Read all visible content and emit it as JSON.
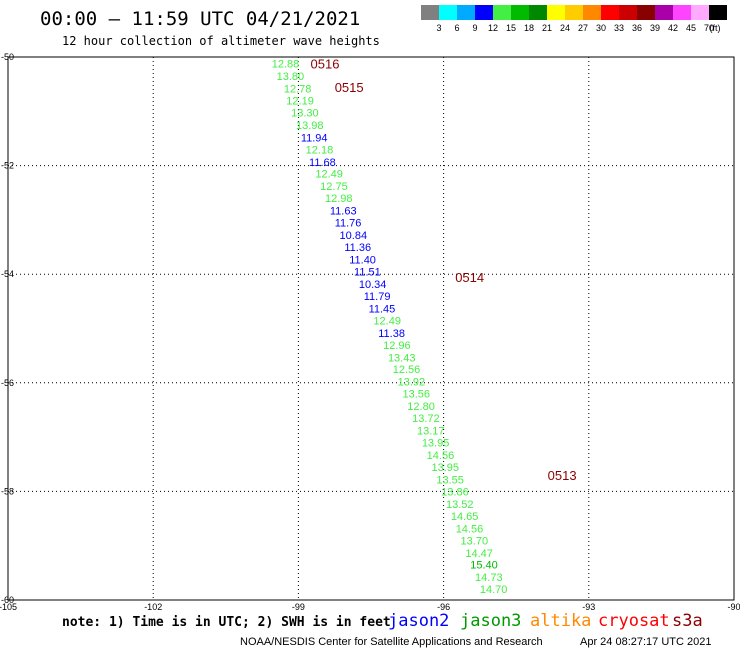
{
  "header": {
    "title": "00:00 – 11:59 UTC 04/21/2021",
    "subtitle": "12 hour collection of altimeter wave heights"
  },
  "legend": {
    "unit": "(ft)",
    "items": [
      {
        "label": "3",
        "color": "#808080"
      },
      {
        "label": "6",
        "color": "#00ffff"
      },
      {
        "label": "9",
        "color": "#00aaff"
      },
      {
        "label": "12",
        "color": "#0000ff"
      },
      {
        "label": "15",
        "color": "#44ee44"
      },
      {
        "label": "18",
        "color": "#00bb00"
      },
      {
        "label": "21",
        "color": "#008800"
      },
      {
        "label": "24",
        "color": "#ffff00"
      },
      {
        "label": "27",
        "color": "#ffcc00"
      },
      {
        "label": "30",
        "color": "#ff8800"
      },
      {
        "label": "33",
        "color": "#ff0000"
      },
      {
        "label": "36",
        "color": "#cc0000"
      },
      {
        "label": "39",
        "color": "#880000"
      },
      {
        "label": "42",
        "color": "#aa00aa"
      },
      {
        "label": "45",
        "color": "#ff44ff"
      },
      {
        "label": "70",
        "color": "#ffaaff"
      },
      {
        "label": "",
        "color": "#000000"
      }
    ]
  },
  "footer": {
    "note": "note: 1) Time is in UTC; 2) SWH is in feet",
    "missions": [
      {
        "name": "jason2",
        "color": "#0000ff"
      },
      {
        "name": "jason3",
        "color": "#009900"
      },
      {
        "name": "altika",
        "color": "#ff8800"
      },
      {
        "name": "cryosat",
        "color": "#ff0000"
      },
      {
        "name": "s3a",
        "color": "#8b0000"
      }
    ],
    "credit": "NOAA/NESDIS Center for Satellite Applications and Research",
    "timestamp": "Apr 24 08:27:17 UTC 2021"
  },
  "chart_data": {
    "type": "scatter",
    "title": "00:00 – 11:59 UTC 04/21/2021",
    "subtitle": "12 hour collection of altimeter wave heights",
    "xlabel": "",
    "ylabel": "",
    "xlim": [
      -105,
      -90
    ],
    "ylim": [
      -60,
      -50
    ],
    "grid": true,
    "x_ticks": [
      "-105",
      "-102",
      "-99",
      "-96",
      "-93",
      "-90"
    ],
    "y_ticks": [
      "-50",
      "-52",
      "-54",
      "-56",
      "-58",
      "-60"
    ],
    "colors": {
      "low": "#0000ff",
      "mid": "#44ee44",
      "high": "#00bb00",
      "pass": "#8b0000"
    },
    "pass_labels": [
      {
        "label": "0516",
        "lon": -98.75,
        "lat": -50.12
      },
      {
        "label": "0515",
        "lon": -98.25,
        "lat": -50.55
      },
      {
        "label": "0514",
        "lon": -95.76,
        "lat": -54.05
      },
      {
        "label": "0513",
        "lon": -93.85,
        "lat": -57.7
      }
    ],
    "points": [
      {
        "lon": -99.55,
        "lat": -50.12,
        "swh": "12.88",
        "level": "mid"
      },
      {
        "lon": -99.45,
        "lat": -50.35,
        "swh": "13.80",
        "level": "mid"
      },
      {
        "lon": -99.3,
        "lat": -50.58,
        "swh": "12.78",
        "level": "mid"
      },
      {
        "lon": -99.25,
        "lat": -50.8,
        "swh": "12.19",
        "level": "mid"
      },
      {
        "lon": -99.15,
        "lat": -51.02,
        "swh": "13.30",
        "level": "mid"
      },
      {
        "lon": -99.05,
        "lat": -51.25,
        "swh": "13.98",
        "level": "mid"
      },
      {
        "lon": -98.95,
        "lat": -51.48,
        "swh": "11.94",
        "level": "low"
      },
      {
        "lon": -98.85,
        "lat": -51.7,
        "swh": "12.18",
        "level": "mid"
      },
      {
        "lon": -98.78,
        "lat": -51.93,
        "swh": "11.68",
        "level": "low"
      },
      {
        "lon": -98.65,
        "lat": -52.15,
        "swh": "12.49",
        "level": "mid"
      },
      {
        "lon": -98.55,
        "lat": -52.38,
        "swh": "12.75",
        "level": "mid"
      },
      {
        "lon": -98.45,
        "lat": -52.6,
        "swh": "12.98",
        "level": "mid"
      },
      {
        "lon": -98.35,
        "lat": -52.83,
        "swh": "11.63",
        "level": "low"
      },
      {
        "lon": -98.25,
        "lat": -53.05,
        "swh": "11.76",
        "level": "low"
      },
      {
        "lon": -98.15,
        "lat": -53.28,
        "swh": "10.84",
        "level": "low"
      },
      {
        "lon": -98.05,
        "lat": -53.5,
        "swh": "11.36",
        "level": "low"
      },
      {
        "lon": -97.95,
        "lat": -53.73,
        "swh": "11.40",
        "level": "low"
      },
      {
        "lon": -97.85,
        "lat": -53.95,
        "swh": "11.51",
        "level": "low"
      },
      {
        "lon": -97.75,
        "lat": -54.18,
        "swh": "10.34",
        "level": "low"
      },
      {
        "lon": -97.65,
        "lat": -54.4,
        "swh": "11.79",
        "level": "low"
      },
      {
        "lon": -97.55,
        "lat": -54.63,
        "swh": "11.45",
        "level": "low"
      },
      {
        "lon": -97.45,
        "lat": -54.85,
        "swh": "12.49",
        "level": "mid"
      },
      {
        "lon": -97.35,
        "lat": -55.08,
        "swh": "11.38",
        "level": "low"
      },
      {
        "lon": -97.25,
        "lat": -55.3,
        "swh": "12.96",
        "level": "mid"
      },
      {
        "lon": -97.15,
        "lat": -55.53,
        "swh": "13.43",
        "level": "mid"
      },
      {
        "lon": -97.05,
        "lat": -55.75,
        "swh": "12.56",
        "level": "mid"
      },
      {
        "lon": -96.95,
        "lat": -55.98,
        "swh": "13.92",
        "level": "mid"
      },
      {
        "lon": -96.85,
        "lat": -56.2,
        "swh": "13.56",
        "level": "mid"
      },
      {
        "lon": -96.75,
        "lat": -56.43,
        "swh": "12.80",
        "level": "mid"
      },
      {
        "lon": -96.65,
        "lat": -56.65,
        "swh": "13.72",
        "level": "mid"
      },
      {
        "lon": -96.55,
        "lat": -56.88,
        "swh": "13.17",
        "level": "mid"
      },
      {
        "lon": -96.45,
        "lat": -57.1,
        "swh": "13.95",
        "level": "mid"
      },
      {
        "lon": -96.35,
        "lat": -57.33,
        "swh": "14.56",
        "level": "mid"
      },
      {
        "lon": -96.25,
        "lat": -57.55,
        "swh": "13.95",
        "level": "mid"
      },
      {
        "lon": -96.15,
        "lat": -57.78,
        "swh": "13.55",
        "level": "mid"
      },
      {
        "lon": -96.05,
        "lat": -58.0,
        "swh": "13.86",
        "level": "mid"
      },
      {
        "lon": -95.95,
        "lat": -58.23,
        "swh": "13.52",
        "level": "mid"
      },
      {
        "lon": -95.85,
        "lat": -58.45,
        "swh": "14.65",
        "level": "mid"
      },
      {
        "lon": -95.75,
        "lat": -58.68,
        "swh": "14.56",
        "level": "mid"
      },
      {
        "lon": -95.65,
        "lat": -58.9,
        "swh": "13.70",
        "level": "mid"
      },
      {
        "lon": -95.55,
        "lat": -59.13,
        "swh": "14.47",
        "level": "mid"
      },
      {
        "lon": -95.45,
        "lat": -59.35,
        "swh": "15.40",
        "level": "high"
      },
      {
        "lon": -95.35,
        "lat": -59.58,
        "swh": "14.73",
        "level": "mid"
      },
      {
        "lon": -95.25,
        "lat": -59.8,
        "swh": "14.70",
        "level": "mid"
      }
    ]
  }
}
